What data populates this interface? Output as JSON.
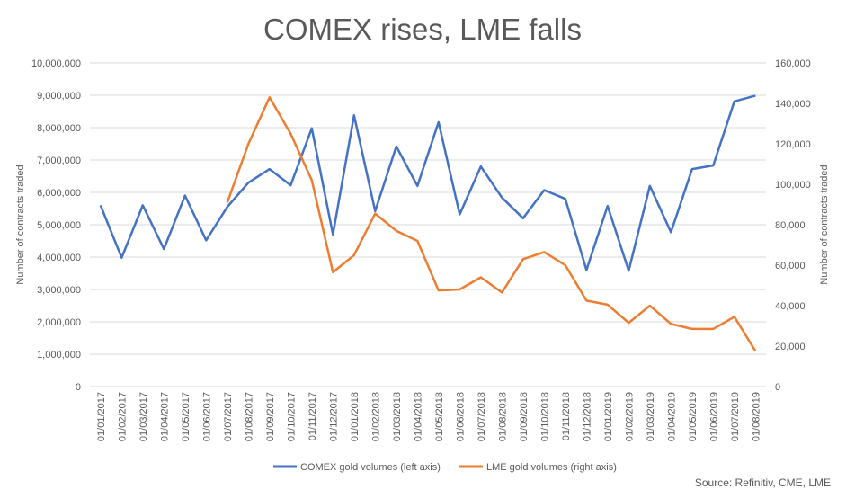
{
  "chart_data": {
    "type": "line",
    "title": "COMEX rises, LME falls",
    "ylabel_left": "Number of contracts traded",
    "ylabel_right": "Number of contracts traded",
    "ylim_left": [
      0,
      10000000
    ],
    "ylim_right": [
      0,
      160000
    ],
    "yticks_left": [
      "0",
      "1,000,000",
      "2,000,000",
      "3,000,000",
      "4,000,000",
      "5,000,000",
      "6,000,000",
      "7,000,000",
      "8,000,000",
      "9,000,000",
      "10,000,000"
    ],
    "yticks_right": [
      "0",
      "20,000",
      "40,000",
      "60,000",
      "80,000",
      "100,000",
      "120,000",
      "140,000",
      "160,000"
    ],
    "categories": [
      "01/01/2017",
      "01/02/2017",
      "01/03/2017",
      "01/04/2017",
      "01/05/2017",
      "01/06/2017",
      "01/07/2017",
      "01/08/2017",
      "01/09/2017",
      "01/10/2017",
      "01/11/2017",
      "01/12/2017",
      "01/01/2018",
      "01/02/2018",
      "01/03/2018",
      "01/04/2018",
      "01/05/2018",
      "01/06/2018",
      "01/07/2018",
      "01/08/2018",
      "01/09/2018",
      "01/10/2018",
      "01/11/2018",
      "01/12/2018",
      "01/01/2019",
      "01/02/2019",
      "01/03/2019",
      "01/04/2019",
      "01/05/2019",
      "01/06/2019",
      "01/07/2019",
      "01/08/2019"
    ],
    "series": [
      {
        "name": "COMEX gold volumes (left axis)",
        "axis": "left",
        "color": "#4472c4",
        "values": [
          5600000,
          3980000,
          5600000,
          4250000,
          5900000,
          4520000,
          5550000,
          6300000,
          6720000,
          6220000,
          7980000,
          4700000,
          8380000,
          5420000,
          7420000,
          6200000,
          8170000,
          5320000,
          6800000,
          5840000,
          5200000,
          6070000,
          5800000,
          3600000,
          5580000,
          3580000,
          6200000,
          4770000,
          6720000,
          6830000,
          8810000,
          8990000
        ]
      },
      {
        "name": "LME gold volumes (right axis)",
        "axis": "right",
        "color": "#ed7d31",
        "values": [
          null,
          null,
          null,
          null,
          null,
          null,
          91000,
          120000,
          143000,
          125000,
          102000,
          56500,
          65000,
          85500,
          77000,
          72000,
          47500,
          48000,
          54000,
          46500,
          63000,
          66500,
          60000,
          42500,
          40500,
          31500,
          40000,
          31000,
          28500,
          28500,
          34500,
          17500
        ]
      }
    ],
    "legend_position": "bottom",
    "grid": true,
    "source": "Source: Refinitiv, CME, LME"
  }
}
